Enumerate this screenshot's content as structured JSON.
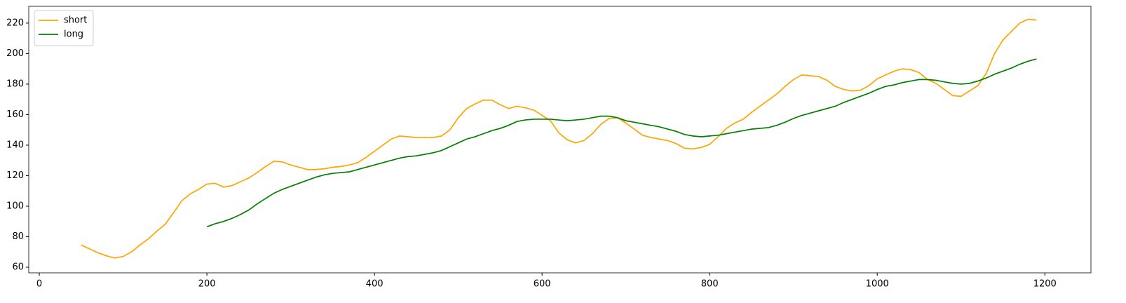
{
  "chart_data": {
    "type": "line",
    "x": [
      50,
      60,
      70,
      80,
      90,
      100,
      110,
      120,
      130,
      140,
      150,
      160,
      170,
      180,
      190,
      200,
      210,
      220,
      230,
      240,
      250,
      260,
      270,
      280,
      290,
      300,
      310,
      320,
      330,
      340,
      350,
      360,
      370,
      380,
      390,
      400,
      410,
      420,
      430,
      440,
      450,
      460,
      470,
      480,
      490,
      500,
      510,
      520,
      530,
      540,
      550,
      560,
      570,
      580,
      590,
      600,
      610,
      620,
      630,
      640,
      650,
      660,
      670,
      680,
      690,
      700,
      710,
      720,
      730,
      740,
      750,
      760,
      770,
      780,
      790,
      800,
      810,
      820,
      830,
      840,
      850,
      860,
      870,
      880,
      890,
      900,
      910,
      920,
      930,
      940,
      950,
      960,
      970,
      980,
      990,
      1000,
      1010,
      1020,
      1030,
      1040,
      1050,
      1060,
      1070,
      1080,
      1090,
      1100,
      1110,
      1120,
      1130,
      1140,
      1150,
      1160,
      1170,
      1180,
      1190
    ],
    "series": [
      {
        "name": "short",
        "color": "#ffa500",
        "values": [
          74.5,
          72,
          69.5,
          67.5,
          66,
          67,
          70,
          74.5,
          78.5,
          83.5,
          88,
          95.5,
          103.5,
          108,
          111,
          114.5,
          115,
          112.5,
          113.5,
          116,
          118.5,
          122,
          126,
          129.5,
          129,
          127,
          125.5,
          124,
          124,
          124.5,
          125.5,
          126,
          127,
          128.5,
          132,
          136,
          140,
          144,
          146,
          145.5,
          145,
          145,
          145,
          146,
          150,
          158,
          164,
          167,
          169.5,
          169.5,
          166.5,
          164,
          165.5,
          164.5,
          163,
          159.5,
          156,
          148,
          143.5,
          141.5,
          143,
          147.5,
          153.5,
          157.5,
          158,
          154.5,
          150.5,
          146.5,
          145,
          144,
          143,
          141,
          138,
          137.5,
          138.5,
          140.5,
          145.5,
          151,
          154.5,
          157,
          161.5,
          165.5,
          169.5,
          173.5,
          178.5,
          183,
          186,
          185.5,
          185,
          182.5,
          178.5,
          176.5,
          175.5,
          176,
          179,
          183.5,
          186,
          188.5,
          190,
          189.5,
          187.5,
          183,
          180.5,
          176.5,
          172.5,
          172,
          175.5,
          179,
          187,
          200,
          209,
          214.5,
          220,
          222.5,
          222
        ]
      },
      {
        "name": "long",
        "color": "#008000",
        "values": [
          null,
          null,
          null,
          null,
          null,
          null,
          null,
          null,
          null,
          null,
          null,
          null,
          null,
          null,
          null,
          86.5,
          88.5,
          90,
          92,
          94.5,
          97.5,
          101.5,
          105,
          108.5,
          111,
          113,
          115,
          117,
          119,
          120.5,
          121.5,
          122,
          122.5,
          124,
          125.5,
          127,
          128.5,
          130,
          131.5,
          132.5,
          133,
          134,
          135,
          136.5,
          139,
          141.5,
          144,
          145.5,
          147.5,
          149.5,
          151,
          153,
          155.5,
          156.5,
          157,
          157,
          157,
          156.5,
          156,
          156.5,
          157,
          158,
          159,
          159,
          158,
          156,
          155,
          154,
          153,
          152,
          150.5,
          149,
          147,
          146,
          145.5,
          146,
          146.5,
          147.5,
          148.5,
          149.5,
          150.5,
          151,
          151.5,
          153,
          155,
          157.5,
          159.5,
          161,
          162.5,
          164,
          165.5,
          168,
          170,
          172,
          174,
          176.5,
          178.5,
          179.5,
          181,
          182,
          183,
          183,
          182.5,
          181.5,
          180.5,
          180,
          180.5,
          182,
          184,
          186.5,
          188.5,
          190.5,
          193,
          195,
          196.5
        ]
      }
    ],
    "xlim": [
      -12.6,
      1255
    ],
    "ylim": [
      56.3,
      231
    ],
    "xticks": [
      0,
      200,
      400,
      600,
      800,
      1000,
      1200
    ],
    "yticks": [
      60,
      80,
      100,
      120,
      140,
      160,
      180,
      200,
      220
    ],
    "legend": "upper left"
  }
}
